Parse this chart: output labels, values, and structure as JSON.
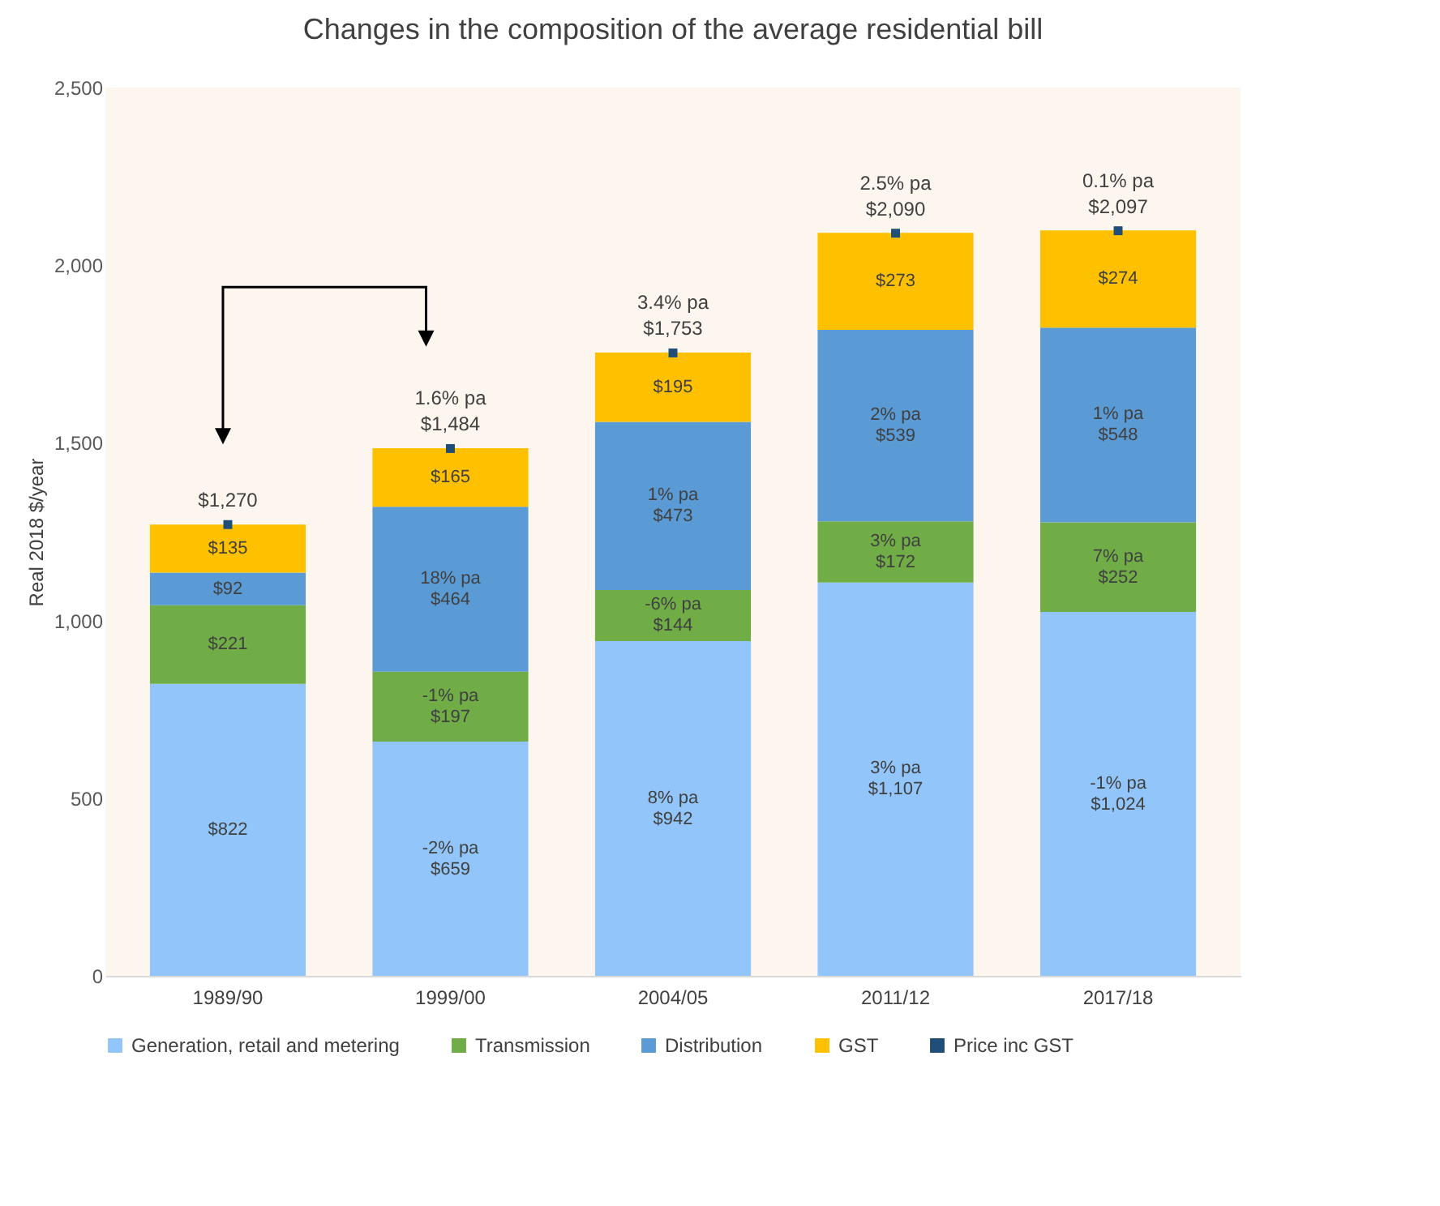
{
  "chart_data": {
    "type": "bar",
    "title": "Changes in the composition of the average residential bill",
    "ylabel": "Real 2018 $/year",
    "categories": [
      "1989/90",
      "1999/00",
      "2004/05",
      "2011/12",
      "2017/18"
    ],
    "stacked": true,
    "series": [
      {
        "name": "Generation, retail and metering",
        "color": "#92c5f9",
        "values": [
          822,
          659,
          942,
          1107,
          1024
        ],
        "value_labels": [
          "$822",
          "-2% pa\n$659",
          "8% pa\n$942",
          "3% pa\n$1,107",
          "-1% pa\n$1,024"
        ]
      },
      {
        "name": "Transmission",
        "color": "#70ad47",
        "values": [
          221,
          197,
          144,
          172,
          252
        ],
        "value_labels": [
          "$221",
          "-1% pa\n$197",
          "-6% pa\n$144",
          "3% pa\n$172",
          "7% pa\n$252"
        ]
      },
      {
        "name": "Distribution",
        "color": "#5b9bd5",
        "values": [
          92,
          464,
          473,
          539,
          548
        ],
        "value_labels": [
          "$92",
          "18% pa\n$464",
          "1% pa\n$473",
          "2% pa\n$539",
          "1% pa\n$548"
        ]
      },
      {
        "name": "GST",
        "color": "#ffc000",
        "values": [
          135,
          165,
          195,
          273,
          274
        ],
        "value_labels": [
          "$135",
          "$165",
          "$195",
          "$273",
          "$274"
        ]
      },
      {
        "name": "Price inc GST",
        "type": "scatter",
        "color": "#1f4e79",
        "marker": "square",
        "values": [
          1270,
          1484,
          1753,
          2090,
          2097
        ],
        "value_labels": [
          "$1,270",
          "1.6% pa\n$1,484",
          "3.4% pa\n$1,753",
          "2.5% pa\n$2,090",
          "0.1% pa\n$2,097"
        ]
      }
    ],
    "ylim": [
      0,
      2500
    ],
    "yticks": [
      0,
      500,
      {
        "value": 1000,
        "label": "1,000"
      },
      {
        "value": 1500,
        "label": "1,500"
      },
      {
        "value": 2000,
        "label": "2,000"
      },
      {
        "value": 2500,
        "label": "2,500"
      }
    ],
    "grid": false,
    "legend": "bottom"
  }
}
